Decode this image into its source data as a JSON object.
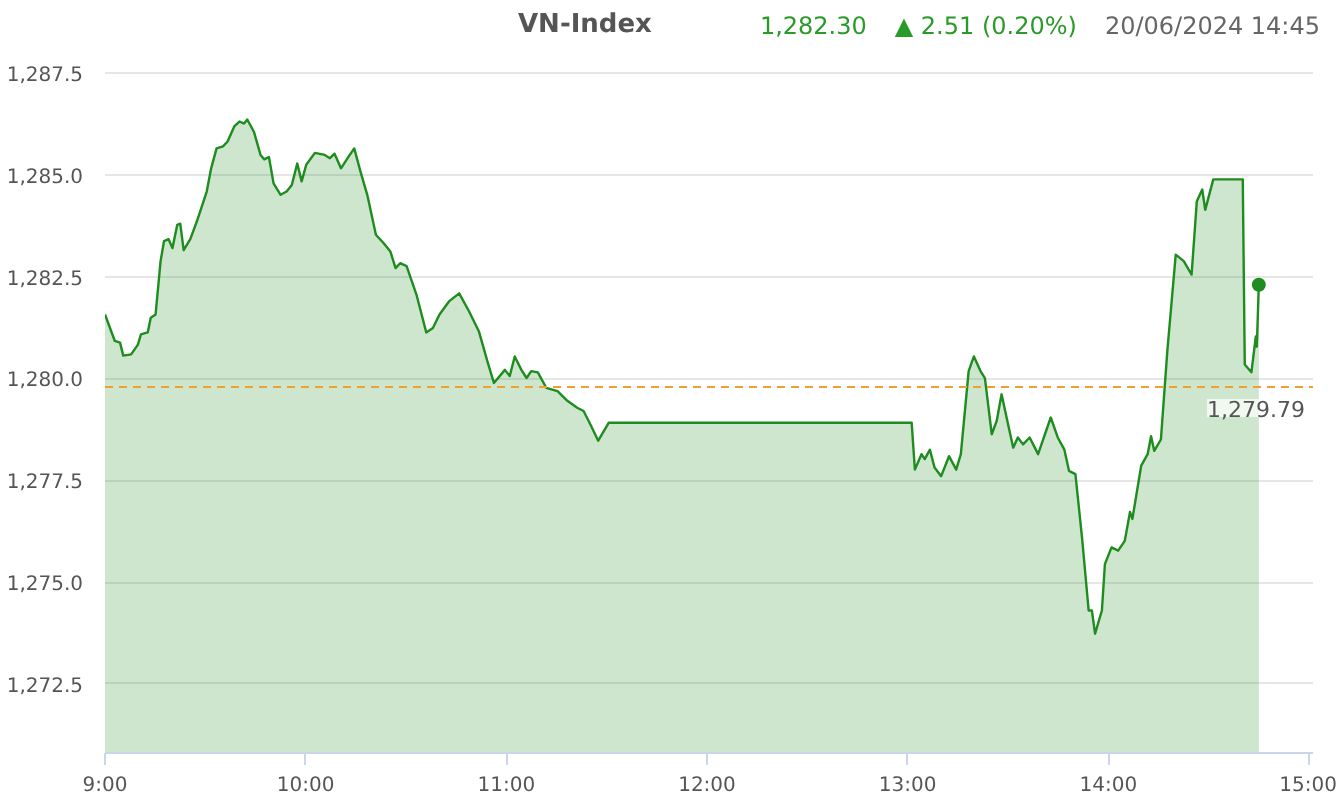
{
  "chart_data": {
    "type": "area",
    "title": "VN-Index",
    "annotations": [
      "1,282.30",
      "▲ 2.51 (0.20%)",
      "20/06/2024 14:45"
    ],
    "xlim": [
      9,
      15.02
    ],
    "ylim": [
      1270.8,
      1287.6
    ],
    "xticks": [
      {
        "value": 9,
        "label": "9:00"
      },
      {
        "value": 10,
        "label": "10:00"
      },
      {
        "value": 11,
        "label": "11:00"
      },
      {
        "value": 12,
        "label": "12:00"
      },
      {
        "value": 13,
        "label": "13:00"
      },
      {
        "value": 14,
        "label": "14:00"
      },
      {
        "value": 15,
        "label": "15:00"
      }
    ],
    "yticks": [
      {
        "value": 1272.5,
        "label": "1,272.5"
      },
      {
        "value": 1275,
        "label": "1,275.0"
      },
      {
        "value": 1277.5,
        "label": "1,277.5"
      },
      {
        "value": 1280,
        "label": "1,280.0"
      },
      {
        "value": 1282.5,
        "label": "1,282.5"
      },
      {
        "value": 1285,
        "label": "1,285.0"
      },
      {
        "value": 1287.5,
        "label": "1,287.5"
      }
    ],
    "grid": "y",
    "line_style": "solid",
    "ref_lines": [
      {
        "axis": "y",
        "value": 1279.79,
        "label": "1,279.79",
        "color": "#f0a030",
        "line_style": "dashed"
      }
    ],
    "series": [
      {
        "color": "#1e8c1e",
        "x": [
          9.0,
          9.049,
          9.075,
          9.091,
          9.13,
          9.164,
          9.179,
          9.213,
          9.228,
          9.252,
          9.277,
          9.294,
          9.317,
          9.336,
          9.36,
          9.375,
          9.392,
          9.425,
          9.458,
          9.507,
          9.529,
          9.556,
          9.588,
          9.611,
          9.644,
          9.67,
          9.693,
          9.709,
          9.742,
          9.775,
          9.794,
          9.817,
          9.84,
          9.875,
          9.905,
          9.931,
          9.958,
          9.98,
          10.003,
          10.046,
          10.095,
          10.121,
          10.144,
          10.176,
          10.209,
          10.242,
          10.275,
          10.307,
          10.35,
          10.389,
          10.422,
          10.448,
          10.471,
          10.503,
          10.552,
          10.601,
          10.634,
          10.667,
          10.716,
          10.765,
          10.814,
          10.863,
          10.905,
          10.938,
          10.993,
          11.017,
          11.042,
          11.075,
          11.101,
          11.124,
          11.157,
          11.199,
          11.255,
          11.304,
          11.353,
          11.385,
          11.419,
          11.458,
          11.51,
          13.02,
          13.036,
          13.069,
          13.085,
          13.111,
          13.134,
          13.167,
          13.206,
          13.242,
          13.265,
          13.304,
          13.33,
          13.363,
          13.385,
          13.419,
          13.444,
          13.468,
          13.493,
          13.526,
          13.549,
          13.575,
          13.608,
          13.65,
          13.713,
          13.748,
          13.781,
          13.804,
          13.836,
          13.869,
          13.902,
          13.918,
          13.934,
          13.968,
          13.983,
          14.016,
          14.049,
          14.082,
          14.108,
          14.12,
          14.164,
          14.196,
          14.213,
          14.229,
          14.262,
          14.294,
          14.336,
          14.376,
          14.415,
          14.441,
          14.468,
          14.483,
          14.523,
          14.67,
          14.68,
          14.713,
          14.735,
          14.74,
          14.75
        ],
        "values": [
          1281.57,
          1280.92,
          1280.88,
          1280.56,
          1280.59,
          1280.83,
          1281.08,
          1281.13,
          1281.49,
          1281.57,
          1282.88,
          1283.37,
          1283.42,
          1283.2,
          1283.77,
          1283.8,
          1283.15,
          1283.42,
          1283.86,
          1284.59,
          1285.16,
          1285.65,
          1285.7,
          1285.82,
          1286.19,
          1286.31,
          1286.26,
          1286.36,
          1286.06,
          1285.49,
          1285.38,
          1285.44,
          1284.79,
          1284.51,
          1284.59,
          1284.75,
          1285.28,
          1284.84,
          1285.25,
          1285.54,
          1285.49,
          1285.41,
          1285.52,
          1285.16,
          1285.41,
          1285.65,
          1285.05,
          1284.51,
          1283.53,
          1283.32,
          1283.12,
          1282.71,
          1282.83,
          1282.76,
          1282.06,
          1281.13,
          1281.24,
          1281.57,
          1281.9,
          1282.09,
          1281.65,
          1281.16,
          1280.43,
          1279.89,
          1280.21,
          1280.06,
          1280.54,
          1280.21,
          1280.01,
          1280.18,
          1280.15,
          1279.77,
          1279.69,
          1279.45,
          1279.28,
          1279.2,
          1278.87,
          1278.47,
          1278.91,
          1278.91,
          1277.76,
          1278.14,
          1278.02,
          1278.25,
          1277.81,
          1277.6,
          1278.09,
          1277.76,
          1278.14,
          1280.18,
          1280.54,
          1280.18,
          1280.01,
          1278.63,
          1278.96,
          1279.61,
          1279.04,
          1278.3,
          1278.55,
          1278.38,
          1278.55,
          1278.14,
          1279.04,
          1278.55,
          1278.25,
          1277.73,
          1277.65,
          1276.09,
          1274.3,
          1274.3,
          1273.73,
          1274.3,
          1275.44,
          1275.85,
          1275.77,
          1276.01,
          1276.72,
          1276.55,
          1277.86,
          1278.14,
          1278.58,
          1278.22,
          1278.5,
          1280.67,
          1283.04,
          1282.88,
          1282.55,
          1284.35,
          1284.64,
          1284.14,
          1284.89,
          1284.89,
          1280.34,
          1280.15,
          1281.03,
          1280.78,
          1282.3
        ]
      },
      {
        "type": "scatter",
        "marker": "circle",
        "color": "#1e8c1e",
        "x": [
          14.75
        ],
        "values": [
          1282.3
        ]
      }
    ]
  }
}
